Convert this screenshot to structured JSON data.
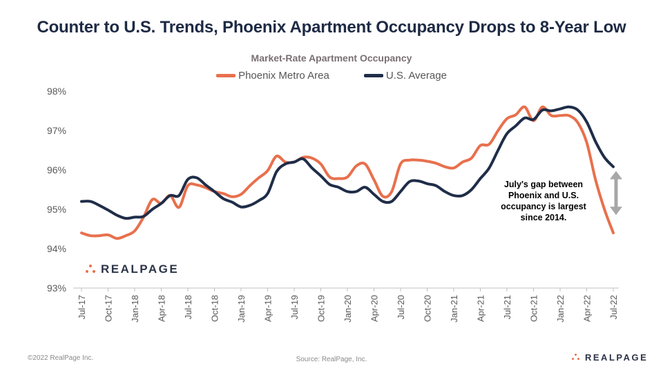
{
  "title": "Counter to U.S. Trends, Phoenix Apartment Occupancy Drops to 8-Year Low",
  "subtitle": "Market-Rate Apartment Occupancy",
  "annotation": "July's gap between Phoenix and U.S. occupancy is largest since 2014.",
  "footer": {
    "copyright": "©2022 RealPage Inc.",
    "source": "Source: RealPage, Inc.",
    "logo": "REALPAGE"
  },
  "colors": {
    "phoenix": "#e8704d",
    "us": "#1f2d48",
    "arrow": "#a7a7a7",
    "title": "#1e2a44"
  },
  "chart_data": {
    "type": "line",
    "x": [
      "Jul-17",
      "Aug-17",
      "Sep-17",
      "Oct-17",
      "Nov-17",
      "Dec-17",
      "Jan-18",
      "Feb-18",
      "Mar-18",
      "Apr-18",
      "May-18",
      "Jun-18",
      "Jul-18",
      "Aug-18",
      "Sep-18",
      "Oct-18",
      "Nov-18",
      "Dec-18",
      "Jan-19",
      "Feb-19",
      "Mar-19",
      "Apr-19",
      "May-19",
      "Jun-19",
      "Jul-19",
      "Aug-19",
      "Sep-19",
      "Oct-19",
      "Nov-19",
      "Dec-19",
      "Jan-20",
      "Feb-20",
      "Mar-20",
      "Apr-20",
      "May-20",
      "Jun-20",
      "Jul-20",
      "Aug-20",
      "Sep-20",
      "Oct-20",
      "Nov-20",
      "Dec-20",
      "Jan-21",
      "Feb-21",
      "Mar-21",
      "Apr-21",
      "May-21",
      "Jun-21",
      "Jul-21",
      "Aug-21",
      "Sep-21",
      "Oct-21",
      "Nov-21",
      "Dec-21",
      "Jan-22",
      "Feb-22",
      "Mar-22",
      "Apr-22",
      "May-22",
      "Jun-22",
      "Jul-22"
    ],
    "x_tick_labels": [
      "Jul-17",
      "Oct-17",
      "Jan-18",
      "Apr-18",
      "Jul-18",
      "Oct-18",
      "Jan-19",
      "Apr-19",
      "Jul-19",
      "Oct-19",
      "Jan-20",
      "Apr-20",
      "Jul-20",
      "Oct-20",
      "Jan-21",
      "Apr-21",
      "Jul-21",
      "Oct-21",
      "Jan-22",
      "Apr-22",
      "Jul-22"
    ],
    "y_tick_labels": [
      "93%",
      "94%",
      "95%",
      "96%",
      "97%",
      "98%"
    ],
    "ylim": [
      93,
      98
    ],
    "series": [
      {
        "name": "Phoenix Metro Area",
        "values": [
          94.4,
          94.33,
          94.33,
          94.35,
          94.26,
          94.33,
          94.45,
          94.8,
          95.25,
          95.15,
          95.35,
          95.05,
          95.6,
          95.62,
          95.55,
          95.45,
          95.4,
          95.32,
          95.38,
          95.6,
          95.8,
          95.98,
          96.35,
          96.2,
          96.2,
          96.32,
          96.3,
          96.15,
          95.82,
          95.78,
          95.82,
          96.1,
          96.15,
          95.75,
          95.33,
          95.45,
          96.15,
          96.25,
          96.25,
          96.22,
          96.17,
          96.08,
          96.05,
          96.2,
          96.3,
          96.62,
          96.65,
          97.0,
          97.3,
          97.4,
          97.6,
          97.25,
          97.6,
          97.38,
          97.38,
          97.38,
          97.2,
          96.7,
          95.75,
          95.0,
          94.4
        ]
      },
      {
        "name": "U.S. Average",
        "values": [
          95.2,
          95.2,
          95.1,
          94.98,
          94.85,
          94.77,
          94.8,
          94.82,
          95.0,
          95.15,
          95.35,
          95.35,
          95.76,
          95.8,
          95.62,
          95.45,
          95.27,
          95.18,
          95.06,
          95.1,
          95.22,
          95.4,
          95.95,
          96.15,
          96.2,
          96.28,
          96.05,
          95.85,
          95.63,
          95.56,
          95.45,
          95.45,
          95.56,
          95.38,
          95.2,
          95.2,
          95.45,
          95.7,
          95.72,
          95.65,
          95.6,
          95.45,
          95.35,
          95.35,
          95.5,
          95.78,
          96.05,
          96.5,
          96.92,
          97.12,
          97.32,
          97.28,
          97.52,
          97.5,
          97.55,
          97.6,
          97.52,
          97.22,
          96.72,
          96.32,
          96.08
        ]
      }
    ],
    "grid": false,
    "legend_position": "top-center"
  }
}
